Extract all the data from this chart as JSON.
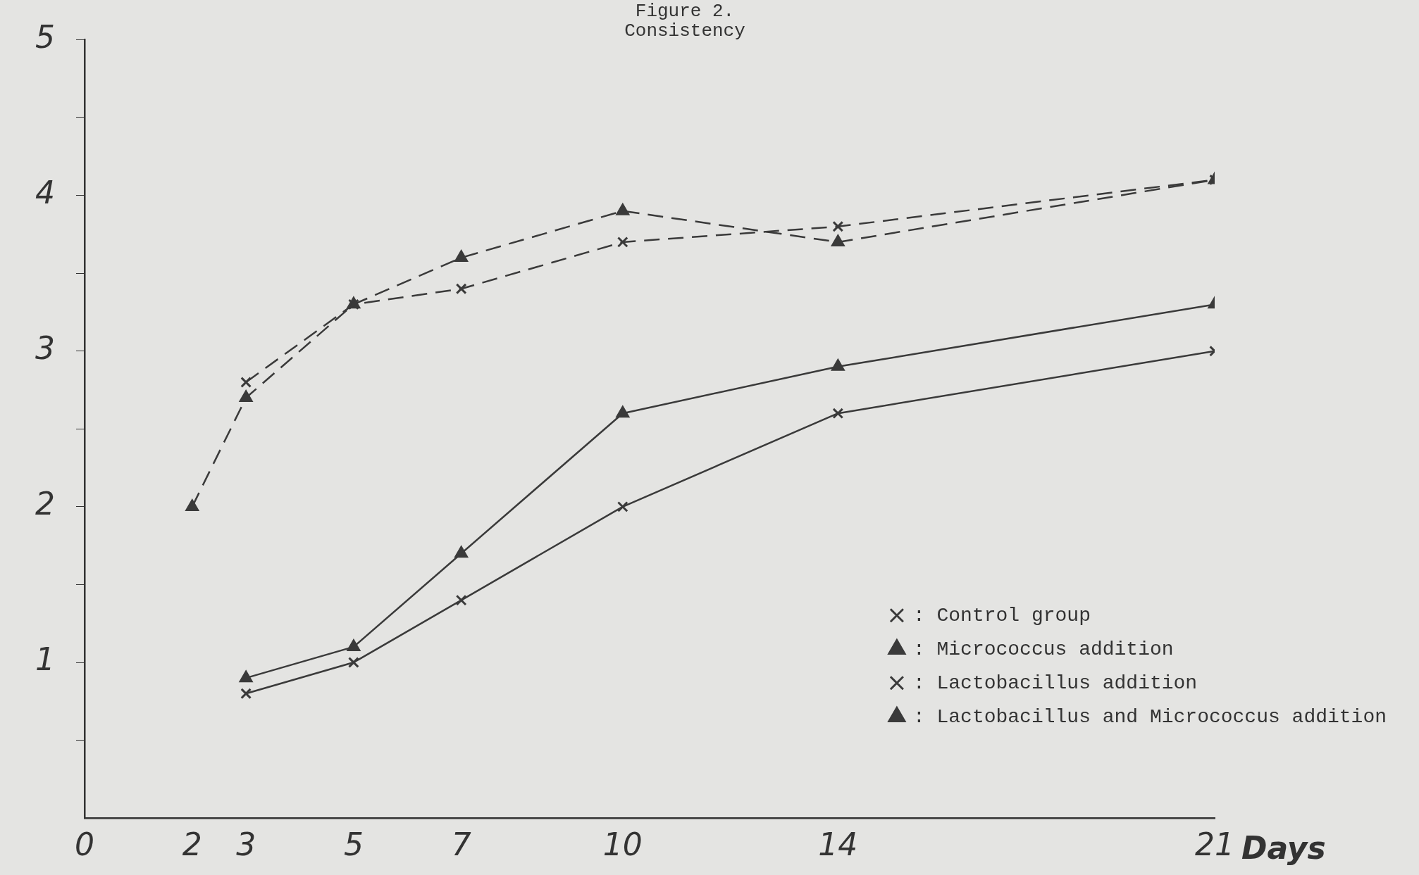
{
  "chart_data": {
    "type": "line",
    "title": "Figure 2.",
    "subtitle": "Consistency",
    "xlabel": "Days",
    "xlim": [
      0,
      21
    ],
    "xticks": [
      0,
      2,
      3,
      5,
      7,
      10,
      14,
      21
    ],
    "ylim": [
      0,
      5
    ],
    "yticks": [
      {
        "value": 0.5,
        "label": null
      },
      1,
      {
        "value": 1.5,
        "label": null
      },
      2,
      {
        "value": 2.5,
        "label": null
      },
      3,
      {
        "value": 3.5,
        "label": null
      },
      4,
      {
        "value": 4.5,
        "label": null
      },
      5
    ],
    "grid": false,
    "legend": "bottom right",
    "series": [
      {
        "name": ": Control group",
        "color": "#3a3a3a",
        "marker": "cross",
        "line_style": "solid",
        "x": [
          3,
          5,
          7,
          10,
          14,
          21
        ],
        "values": [
          0.8,
          1.0,
          1.4,
          2.0,
          2.6,
          3.0
        ]
      },
      {
        "name": ": Micrococcus addition",
        "color": "#3a3a3a",
        "marker": "triangle",
        "line_style": "solid",
        "x": [
          3,
          5,
          7,
          10,
          14,
          21
        ],
        "values": [
          0.9,
          1.1,
          1.7,
          2.6,
          2.9,
          3.3
        ]
      },
      {
        "name": ": Lactobacillus addition",
        "color": "#3a3a3a",
        "marker": "cross",
        "line_style": "dashed",
        "x": [
          3,
          5,
          7,
          10,
          14,
          21
        ],
        "values": [
          2.8,
          3.3,
          3.4,
          3.7,
          3.8,
          4.1
        ]
      },
      {
        "name": ": Lactobacillus and Micrococcus addition",
        "color": "#3a3a3a",
        "marker": "triangle",
        "line_style": "dashed",
        "x": [
          2,
          3,
          5,
          7,
          10,
          14,
          21
        ],
        "values": [
          2.0,
          2.7,
          3.3,
          3.6,
          3.9,
          3.7,
          4.1
        ]
      }
    ]
  }
}
